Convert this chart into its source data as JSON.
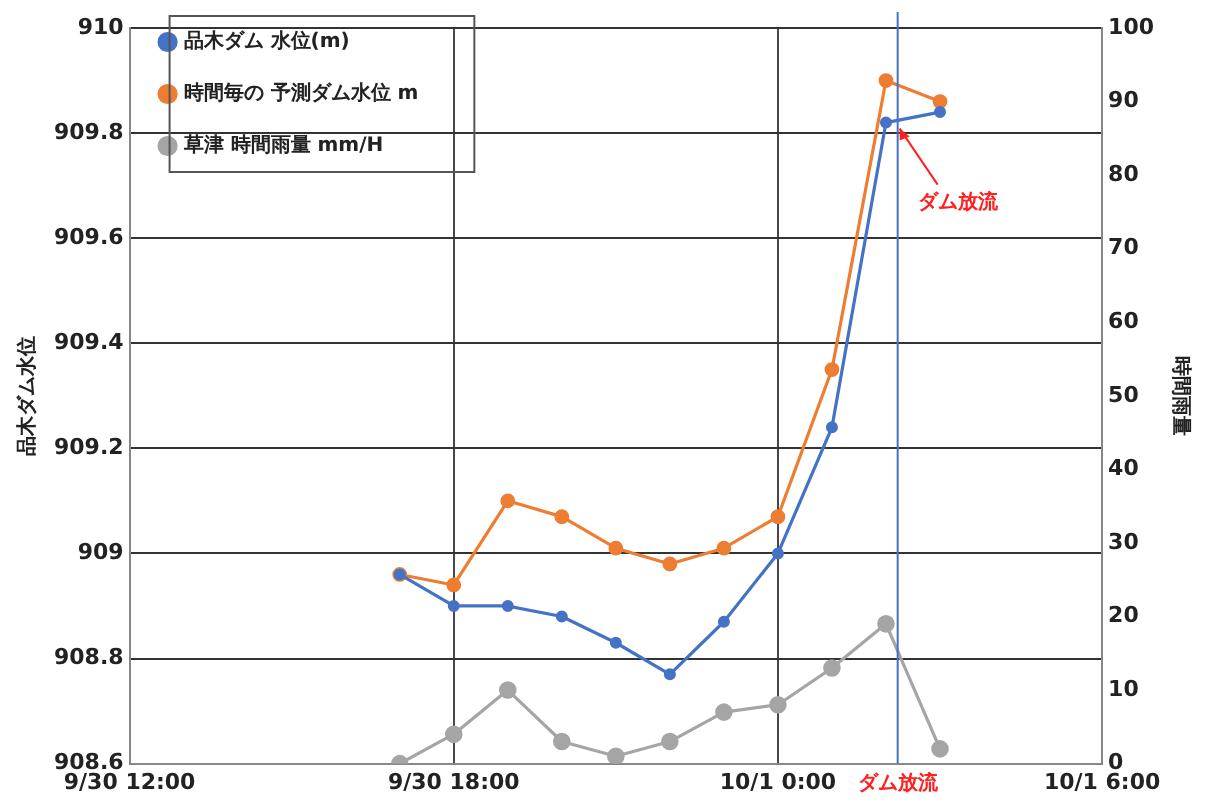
{
  "chart_data": {
    "type": "line",
    "xlabel": null,
    "ylabel": "品木ダム水位",
    "y2label": "時間雨量",
    "x": [
      "--09-30T17:00",
      "--09-30T18:00",
      "--09-30T19:00",
      "--09-30T20:00",
      "--09-30T21:00",
      "--09-30T22:00",
      "--09-30T23:00",
      "--10-01T00:00",
      "--10-01T01:00",
      "--10-01T02:00",
      "--10-01T03:00"
    ],
    "series": [
      {
        "name": "品木ダム 水位(m)",
        "color": "#4472c4",
        "values": [
          908.96,
          908.9,
          908.9,
          908.88,
          908.83,
          908.77,
          908.87,
          909.0,
          909.24,
          909.82,
          909.84
        ]
      },
      {
        "name": "時間毎の 予測ダム水位 m",
        "color": "#ed7d31",
        "values": [
          908.96,
          908.94,
          909.1,
          909.07,
          909.01,
          908.98,
          909.01,
          909.07,
          909.35,
          909.9,
          909.86
        ]
      },
      {
        "name": "草津 時間雨量 mm/H",
        "color": "#a5a5a5",
        "axis": "y2",
        "values": [
          0,
          4,
          10,
          3,
          1,
          3,
          7,
          8,
          13,
          19,
          2
        ]
      }
    ],
    "xlim": [
      "--09-30T12:00",
      "--10-01T06:00"
    ],
    "xticks": [
      {
        "value": "--09-30T12:00",
        "label": "9/30 12:00"
      },
      {
        "value": "--09-30T18:00",
        "label": "9/30 18:00"
      },
      {
        "value": "--10-01T00:00",
        "label": "10/1 0:00"
      },
      {
        "value": "--10-01T06:00",
        "label": "10/1 6:00"
      }
    ],
    "ylim": [
      908.6,
      910
    ],
    "yticks": [
      908.6,
      908.8,
      909,
      909.2,
      909.4,
      909.6,
      909.8,
      910
    ],
    "y2lim": [
      0,
      100
    ],
    "y2ticks": [
      0,
      10,
      20,
      30,
      40,
      50,
      60,
      70,
      80,
      90,
      100
    ],
    "ref_lines": [
      {
        "axis": "x",
        "value": "--10-01T02:13",
        "label": "ダム放流",
        "color": "#4472c4"
      }
    ],
    "annotations": [
      {
        "text": "ダム放流",
        "x": "--10-01T02:13",
        "y": 909.82
      }
    ],
    "grid": true,
    "legend": "top left",
    "marker": "circle",
    "line_style": "solid"
  }
}
